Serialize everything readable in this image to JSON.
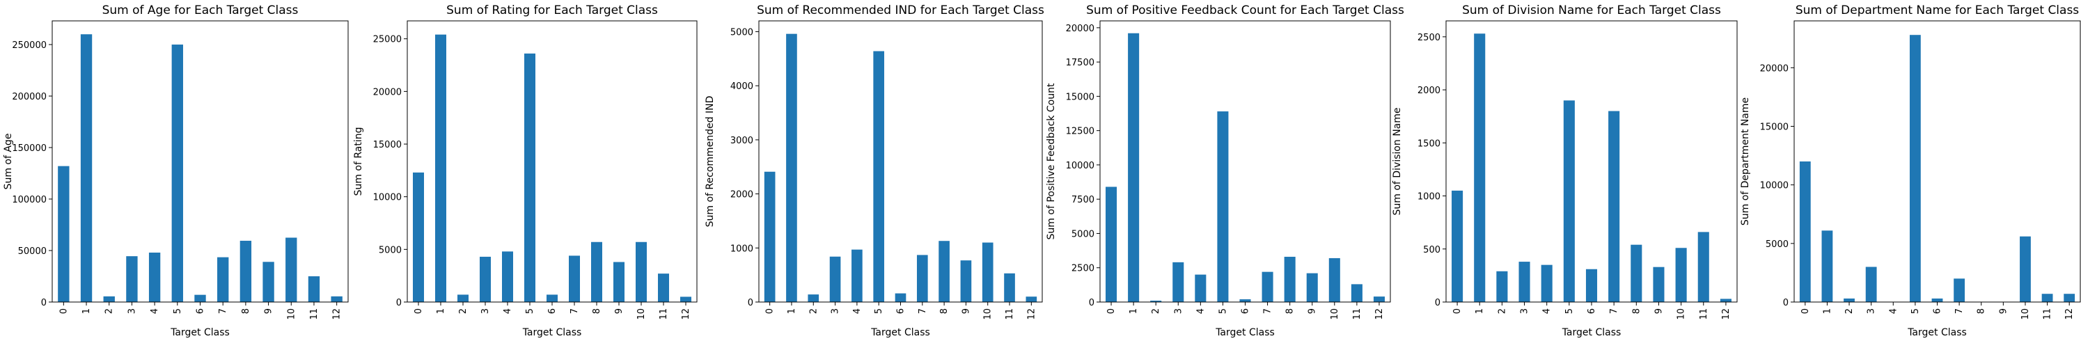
{
  "colors": {
    "bar": "#1f77b4",
    "axis": "#000000",
    "background": "#ffffff"
  },
  "chart_data": [
    {
      "type": "bar",
      "title": "Sum of Age for Each Target Class",
      "xlabel": "Target Class",
      "ylabel": "Sum of Age",
      "categories": [
        "0",
        "1",
        "2",
        "3",
        "4",
        "5",
        "6",
        "7",
        "8",
        "9",
        "10",
        "11",
        "12"
      ],
      "values": [
        132000,
        260000,
        5500,
        44500,
        48000,
        250000,
        7000,
        43500,
        59500,
        39000,
        62500,
        25000,
        5500
      ],
      "ylim": [
        0,
        273000
      ],
      "yticks": [
        0,
        50000,
        100000,
        150000,
        200000,
        250000
      ],
      "ytick_labels": [
        "0",
        "50000",
        "100000",
        "150000",
        "200000",
        "250000"
      ],
      "grid": false
    },
    {
      "type": "bar",
      "title": "Sum of Rating for Each Target Class",
      "xlabel": "Target Class",
      "ylabel": "Sum of Rating",
      "categories": [
        "0",
        "1",
        "2",
        "3",
        "4",
        "5",
        "6",
        "7",
        "8",
        "9",
        "10",
        "11",
        "12"
      ],
      "values": [
        12300,
        25400,
        700,
        4300,
        4800,
        23600,
        700,
        4400,
        5700,
        3800,
        5700,
        2700,
        500
      ],
      "ylim": [
        0,
        26700
      ],
      "yticks": [
        0,
        5000,
        10000,
        15000,
        20000,
        25000
      ],
      "ytick_labels": [
        "0",
        "5000",
        "10000",
        "15000",
        "20000",
        "25000"
      ],
      "grid": false
    },
    {
      "type": "bar",
      "title": "Sum of Recommended IND for Each Target Class",
      "xlabel": "Target Class",
      "ylabel": "Sum of Recommended IND",
      "categories": [
        "0",
        "1",
        "2",
        "3",
        "4",
        "5",
        "6",
        "7",
        "8",
        "9",
        "10",
        "11",
        "12"
      ],
      "values": [
        2410,
        4960,
        140,
        840,
        970,
        4640,
        160,
        870,
        1130,
        770,
        1100,
        530,
        100
      ],
      "ylim": [
        0,
        5200
      ],
      "yticks": [
        0,
        1000,
        2000,
        3000,
        4000,
        5000
      ],
      "ytick_labels": [
        "0",
        "1000",
        "2000",
        "3000",
        "4000",
        "5000"
      ],
      "grid": false
    },
    {
      "type": "bar",
      "title": "Sum of Positive Feedback Count for Each Target Class",
      "xlabel": "Target Class",
      "ylabel": "Sum of Positive Feedback Count",
      "categories": [
        "0",
        "1",
        "2",
        "3",
        "4",
        "5",
        "6",
        "7",
        "8",
        "9",
        "10",
        "11",
        "12"
      ],
      "values": [
        8400,
        19600,
        100,
        2900,
        2000,
        13900,
        200,
        2200,
        3300,
        2100,
        3200,
        1300,
        400
      ],
      "ylim": [
        0,
        20500
      ],
      "yticks": [
        0,
        2500,
        5000,
        7500,
        10000,
        12500,
        15000,
        17500,
        20000
      ],
      "ytick_labels": [
        "0",
        "2500",
        "5000",
        "7500",
        "10000",
        "12500",
        "15000",
        "17500",
        "20000"
      ],
      "grid": false
    },
    {
      "type": "bar",
      "title": "Sum of Division Name for Each Target Class",
      "xlabel": "Target Class",
      "ylabel": "Sum of Division Name",
      "categories": [
        "0",
        "1",
        "2",
        "3",
        "4",
        "5",
        "6",
        "7",
        "8",
        "9",
        "10",
        "11",
        "12"
      ],
      "values": [
        1050,
        2530,
        290,
        380,
        350,
        1900,
        310,
        1800,
        540,
        330,
        510,
        660,
        30
      ],
      "ylim": [
        0,
        2650
      ],
      "yticks": [
        0,
        500,
        1000,
        1500,
        2000,
        2500
      ],
      "ytick_labels": [
        "0",
        "500",
        "1000",
        "1500",
        "2000",
        "2500"
      ],
      "grid": false
    },
    {
      "type": "bar",
      "title": "Sum of Department Name for Each Target Class",
      "xlabel": "Target Class",
      "ylabel": "Sum of Department Name",
      "categories": [
        "0",
        "1",
        "2",
        "3",
        "4",
        "5",
        "6",
        "7",
        "8",
        "9",
        "10",
        "11",
        "12"
      ],
      "values": [
        12000,
        6100,
        300,
        3000,
        0,
        22800,
        300,
        2000,
        0,
        0,
        5600,
        700,
        700
      ],
      "ylim": [
        0,
        24000
      ],
      "yticks": [
        0,
        5000,
        10000,
        15000,
        20000
      ],
      "ytick_labels": [
        "0",
        "5000",
        "10000",
        "15000",
        "20000"
      ],
      "grid": false
    }
  ]
}
